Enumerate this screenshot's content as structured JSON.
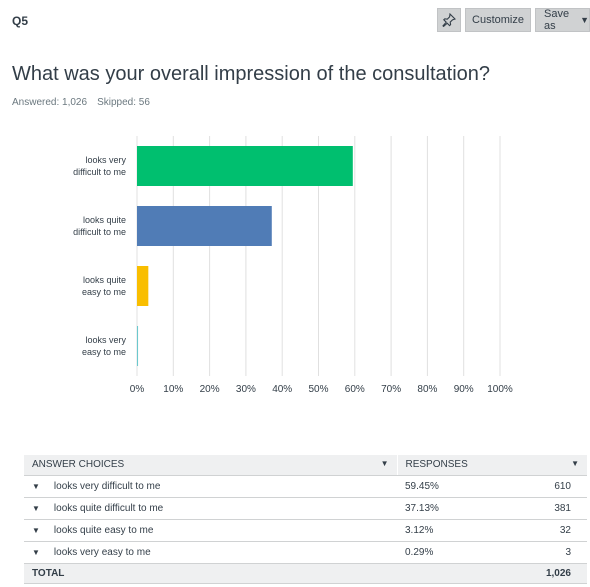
{
  "question": {
    "label": "Q5",
    "title": "What was your overall impression of the consultation?",
    "answered": "Answered: 1,026",
    "skipped": "Skipped: 56"
  },
  "toolbar": {
    "customize_label": "Customize",
    "saveas_label": "Save as"
  },
  "colors": {
    "bar1": "#00bf6f",
    "bar2": "#507cb6",
    "bar3": "#f9be00",
    "bar4": "#6bc8cd",
    "grid": "#e0e0e0"
  },
  "chart_data": {
    "type": "bar",
    "orientation": "horizontal",
    "categories": [
      "looks very difficult to me",
      "looks quite difficult to me",
      "looks quite easy to me",
      "looks very easy to me"
    ],
    "category_lines": [
      [
        "looks very",
        "difficult to me"
      ],
      [
        "looks quite",
        "difficult to me"
      ],
      [
        "looks quite",
        "easy to me"
      ],
      [
        "looks very",
        "easy to me"
      ]
    ],
    "values": [
      59.45,
      37.13,
      3.12,
      0.29
    ],
    "xlim": [
      0,
      100
    ],
    "xticks": [
      "0%",
      "10%",
      "20%",
      "30%",
      "40%",
      "50%",
      "60%",
      "70%",
      "80%",
      "90%",
      "100%"
    ],
    "grid": true,
    "legend": "none"
  },
  "table": {
    "headers": {
      "choices": "ANSWER CHOICES",
      "responses": "RESPONSES"
    },
    "rows": [
      {
        "choice": "looks very difficult to me",
        "pct": "59.45%",
        "count": "610"
      },
      {
        "choice": "looks quite difficult to me",
        "pct": "37.13%",
        "count": "381"
      },
      {
        "choice": "looks quite easy to me",
        "pct": "3.12%",
        "count": "32"
      },
      {
        "choice": "looks very easy to me",
        "pct": "0.29%",
        "count": "3"
      }
    ],
    "total": {
      "label": "TOTAL",
      "count": "1,026"
    }
  }
}
